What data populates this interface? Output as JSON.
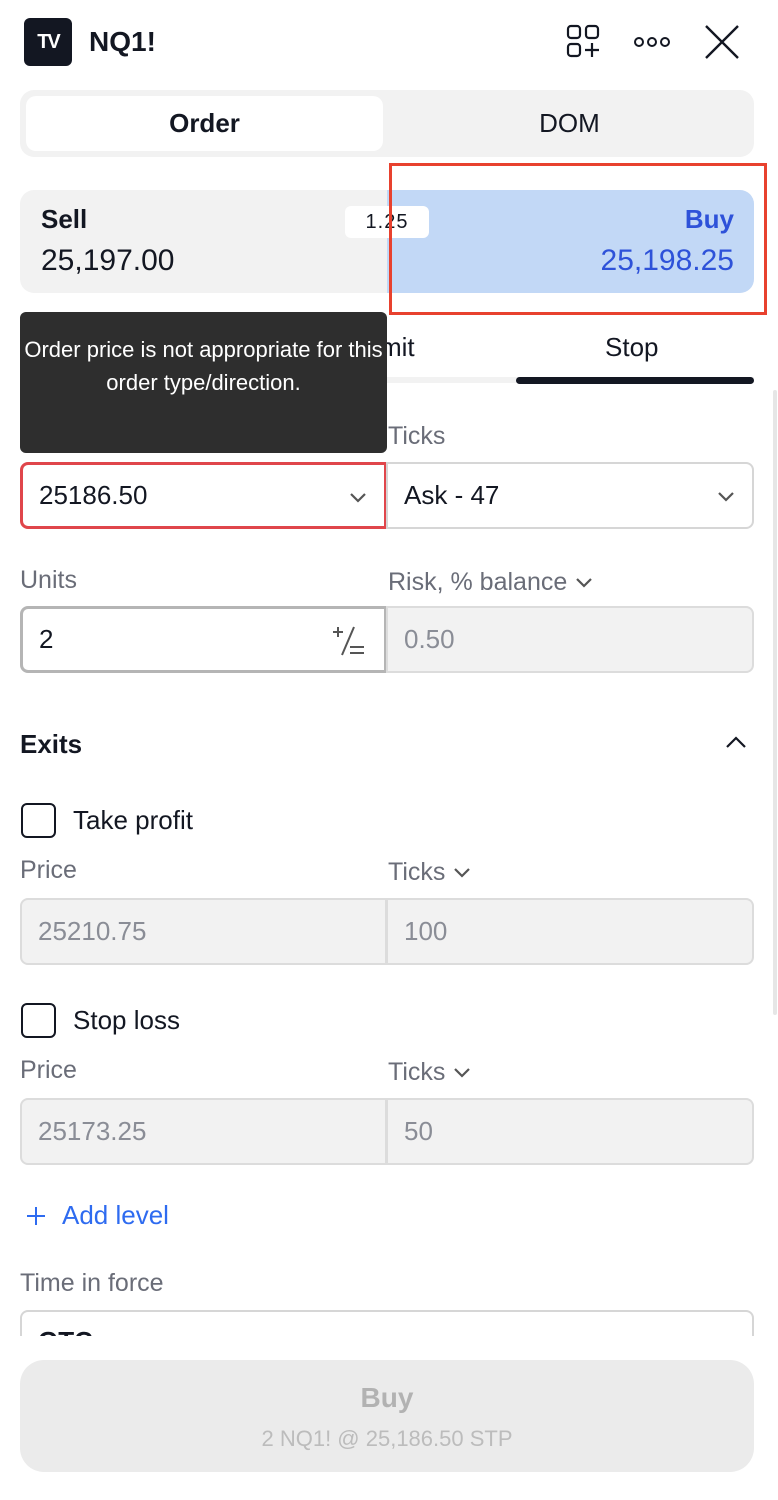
{
  "header": {
    "logo": "TV",
    "symbol": "NQ1!",
    "icons": [
      "add-layout-icon",
      "more-icon",
      "close-icon"
    ]
  },
  "view_tabs": [
    {
      "label": "Order",
      "active": true
    },
    {
      "label": "DOM",
      "active": false
    }
  ],
  "quote": {
    "sell_label": "Sell",
    "sell_price": "25,197.00",
    "buy_label": "Buy",
    "buy_price": "25,198.25",
    "spread": "1.25",
    "buy_color": "#2e52d9"
  },
  "order_types": {
    "visible_partial": "mit",
    "active": "Stop"
  },
  "tooltip": "Order price is not appropriate for this order type/direction.",
  "price_row": {
    "ticks_label": "Ticks",
    "price_value": "25186.50",
    "ticks_value": "Ask - 47",
    "error_color": "#e0464b"
  },
  "size_row": {
    "units_label": "Units",
    "risk_label": "Risk, % balance",
    "units_value": "2",
    "risk_value": "0.50"
  },
  "exits": {
    "title": "Exits",
    "take_profit": {
      "label": "Take profit",
      "checked": false,
      "price_label": "Price",
      "ticks_label": "Ticks",
      "price": "25210.75",
      "ticks": "100"
    },
    "stop_loss": {
      "label": "Stop loss",
      "checked": false,
      "price_label": "Price",
      "ticks_label": "Ticks",
      "price": "25173.25",
      "ticks": "50"
    },
    "add_level": "Add level"
  },
  "time_in_force": {
    "label": "Time in force",
    "value": "GTC"
  },
  "submit": {
    "label": "Buy",
    "summary": "2 NQ1! @ 25,186.50 STP"
  }
}
